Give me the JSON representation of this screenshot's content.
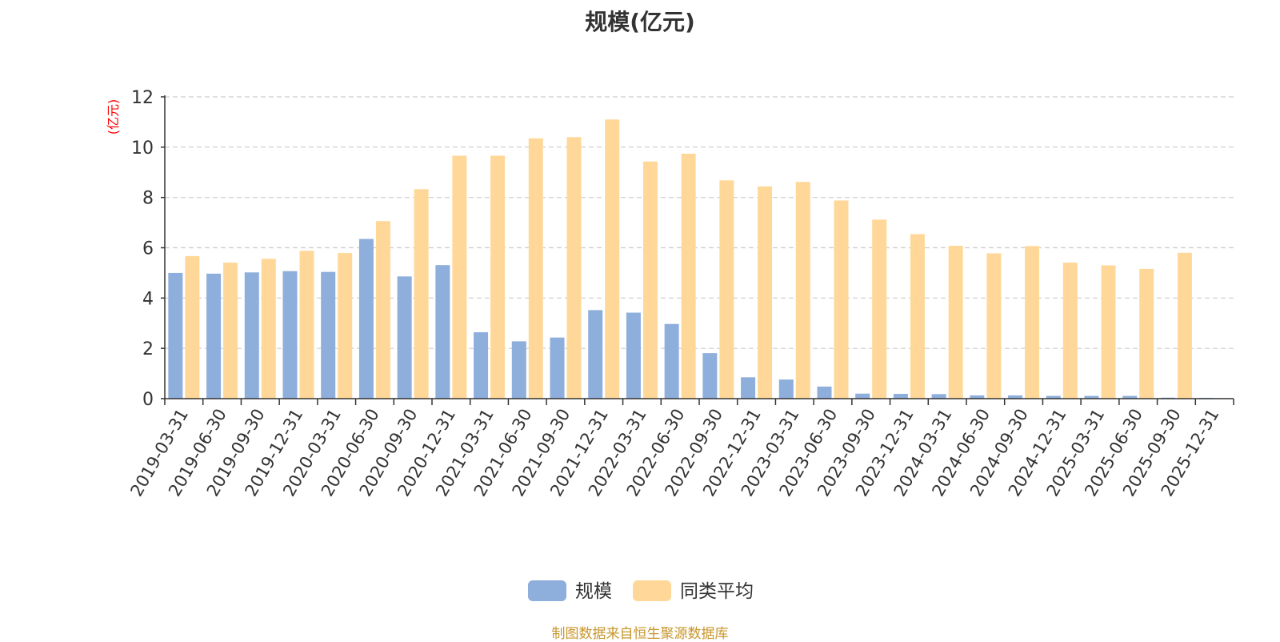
{
  "chart_data": {
    "type": "bar",
    "title": "规模(亿元)",
    "ylabel": "(亿元)",
    "xlabel": "",
    "ylim": [
      0,
      12
    ],
    "yticks": [
      0,
      2,
      4,
      6,
      8,
      10,
      12
    ],
    "grid": true,
    "legend_position": "bottom-center",
    "categories": [
      "2019-03-31",
      "2019-06-30",
      "2019-09-30",
      "2019-12-31",
      "2020-03-31",
      "2020-06-30",
      "2020-09-30",
      "2020-12-31",
      "2021-03-31",
      "2021-06-30",
      "2021-09-30",
      "2021-12-31",
      "2022-03-31",
      "2022-06-30",
      "2022-09-30",
      "2022-12-31",
      "2023-03-31",
      "2023-06-30",
      "2023-09-30",
      "2023-12-31",
      "2024-03-31",
      "2024-06-30",
      "2024-09-30",
      "2024-12-31",
      "2025-03-31",
      "2025-06-30",
      "2025-09-30",
      "2025-12-31"
    ],
    "series": [
      {
        "name": "规模",
        "color": "#8eaedc",
        "values": [
          5.0,
          4.97,
          5.02,
          5.07,
          5.04,
          6.35,
          4.86,
          5.31,
          2.64,
          2.28,
          2.43,
          3.52,
          3.42,
          2.97,
          1.81,
          0.85,
          0.76,
          0.48,
          0.2,
          0.19,
          0.18,
          0.13,
          0.13,
          0.11,
          0.11,
          0.11,
          0.04,
          0.03
        ]
      },
      {
        "name": "同类平均",
        "color": "#ffd899",
        "values": [
          5.67,
          5.41,
          5.56,
          5.88,
          5.79,
          7.06,
          8.33,
          9.66,
          9.66,
          10.35,
          10.4,
          11.1,
          9.43,
          9.74,
          8.68,
          8.44,
          8.62,
          7.88,
          7.12,
          6.54,
          6.08,
          5.78,
          6.07,
          5.41,
          5.3,
          5.16,
          5.8,
          null
        ]
      }
    ]
  },
  "source_note": "制图数据来自恒生聚源数据库",
  "colors": {
    "axis": "#333333",
    "grid": "#cccccc",
    "ylabel": "#ff0000",
    "source": "#c8962c",
    "title": "#333333"
  }
}
